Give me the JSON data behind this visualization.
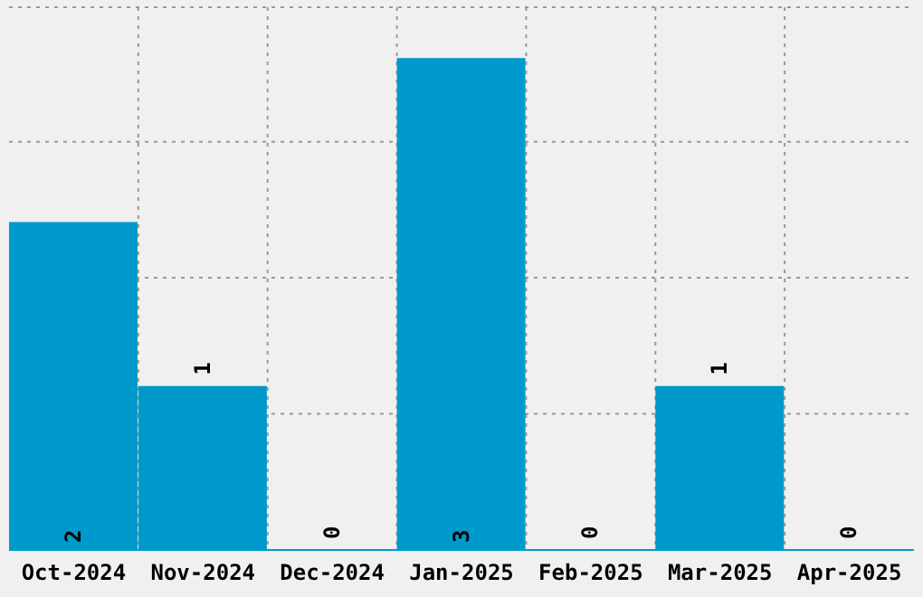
{
  "chart_data": {
    "type": "bar",
    "categories": [
      "Oct-2024",
      "Nov-2024",
      "Dec-2024",
      "Jan-2025",
      "Feb-2025",
      "Mar-2025",
      "Apr-2025"
    ],
    "values": [
      2,
      1,
      0,
      3,
      0,
      1,
      0
    ],
    "color": "#0099cc",
    "ylim": [
      0,
      3.31
    ],
    "yticks": [
      {
        "value": 0,
        "label": null
      },
      {
        "value": 0.83,
        "label": null
      },
      {
        "value": 1.66,
        "label": null
      },
      {
        "value": 2.49,
        "label": null
      }
    ],
    "grid": true,
    "tick_labels": "x",
    "data_labels": true
  }
}
